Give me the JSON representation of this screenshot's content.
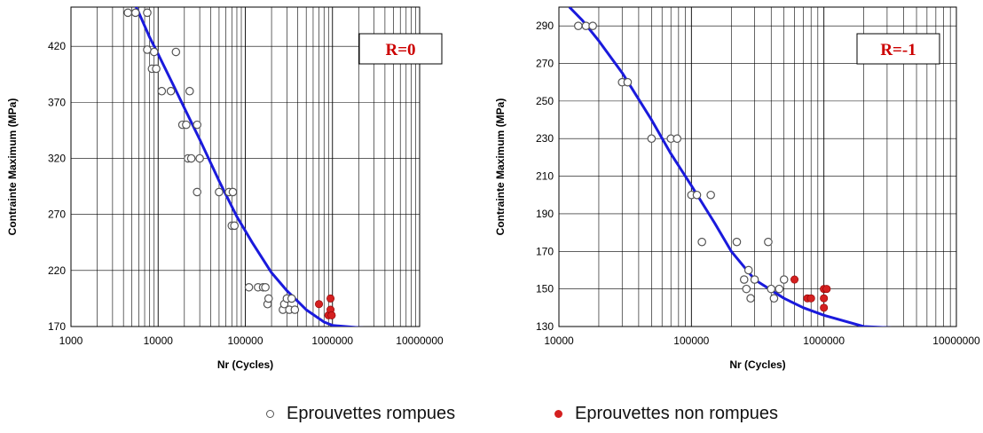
{
  "colors": {
    "curve": "#1a1adc",
    "rompues_fill": "#ffffff",
    "rompues_stroke": "#555555",
    "non_rompues": "#d42020",
    "grid": "#000000",
    "box_text": "#cc0000"
  },
  "legend": {
    "rompues": {
      "label": "Eprouvettes rompues",
      "marker": "open-circle"
    },
    "non_rompues": {
      "label": "Eprouvettes non rompues",
      "marker": "filled-red-circle"
    }
  },
  "chart_data": [
    {
      "type": "scatter",
      "box_label": "R=0",
      "xlabel": "Nr (Cycles)",
      "ylabel": "Contrainte Maximum (MPa)",
      "xscale": "log",
      "xlim": [
        1000,
        10000000
      ],
      "ylim": [
        170,
        455
      ],
      "grid": true,
      "xticks": [
        "1000",
        "10000",
        "100000",
        "1000000",
        "10000000"
      ],
      "yticks": [
        170,
        220,
        270,
        320,
        370,
        420
      ],
      "curve": {
        "x": [
          4500,
          6000,
          8000,
          10000,
          15000,
          20000,
          30000,
          50000,
          80000,
          120000,
          200000,
          300000,
          500000,
          800000,
          1000000,
          2000000,
          5000000,
          8000000
        ],
        "y": [
          470,
          450,
          428,
          413,
          385,
          365,
          337,
          300,
          268,
          245,
          218,
          202,
          185,
          174,
          171,
          169,
          168,
          168
        ]
      },
      "series": [
        {
          "name": "Eprouvettes rompues",
          "points": [
            [
              4500,
              450
            ],
            [
              5500,
              450
            ],
            [
              7500,
              450
            ],
            [
              7500,
              417
            ],
            [
              8500,
              400
            ],
            [
              9000,
              415
            ],
            [
              9500,
              400
            ],
            [
              11000,
              380
            ],
            [
              14000,
              380
            ],
            [
              16000,
              415
            ],
            [
              19000,
              350
            ],
            [
              21000,
              350
            ],
            [
              22000,
              320
            ],
            [
              23000,
              380
            ],
            [
              24000,
              320
            ],
            [
              28000,
              350
            ],
            [
              28000,
              290
            ],
            [
              30000,
              320
            ],
            [
              50000,
              290
            ],
            [
              65000,
              290
            ],
            [
              70000,
              260
            ],
            [
              72000,
              290
            ],
            [
              75000,
              260
            ],
            [
              110000,
              205
            ],
            [
              140000,
              205
            ],
            [
              160000,
              205
            ],
            [
              170000,
              205
            ],
            [
              180000,
              190
            ],
            [
              185000,
              195
            ],
            [
              270000,
              185
            ],
            [
              280000,
              190
            ],
            [
              300000,
              195
            ],
            [
              320000,
              185
            ],
            [
              340000,
              195
            ],
            [
              370000,
              185
            ]
          ]
        },
        {
          "name": "Eprouvettes non rompues",
          "points": [
            [
              700000,
              190
            ],
            [
              900000,
              180
            ],
            [
              950000,
              185
            ],
            [
              950000,
              195
            ],
            [
              980000,
              180
            ]
          ]
        }
      ]
    },
    {
      "type": "scatter",
      "box_label": "R=-1",
      "xlabel": "Nr (Cycles)",
      "ylabel": "Contrainte Maximum (MPa)",
      "xscale": "log",
      "xlim": [
        10000,
        10000000
      ],
      "ylim": [
        130,
        300
      ],
      "grid": true,
      "xticks": [
        "10000",
        "100000",
        "1000000",
        "10000000"
      ],
      "yticks": [
        130,
        150,
        170,
        190,
        210,
        230,
        250,
        270,
        290
      ],
      "curve": {
        "x": [
          12000,
          15000,
          20000,
          30000,
          50000,
          70000,
          100000,
          150000,
          200000,
          300000,
          500000,
          700000,
          1000000,
          2000000,
          4000000,
          10000000
        ],
        "y": [
          300,
          293,
          282,
          265,
          240,
          222,
          205,
          185,
          170,
          155,
          145,
          140,
          136,
          130,
          129,
          129
        ]
      },
      "series": [
        {
          "name": "Eprouvettes rompues",
          "points": [
            [
              14000,
              290
            ],
            [
              16000,
              290
            ],
            [
              18000,
              290
            ],
            [
              30000,
              260
            ],
            [
              33000,
              260
            ],
            [
              50000,
              230
            ],
            [
              70000,
              230
            ],
            [
              78000,
              230
            ],
            [
              100000,
              200
            ],
            [
              110000,
              200
            ],
            [
              120000,
              175
            ],
            [
              140000,
              200
            ],
            [
              220000,
              175
            ],
            [
              250000,
              155
            ],
            [
              260000,
              150
            ],
            [
              270000,
              160
            ],
            [
              280000,
              145
            ],
            [
              300000,
              155
            ],
            [
              380000,
              175
            ],
            [
              400000,
              150
            ],
            [
              420000,
              145
            ],
            [
              460000,
              150
            ],
            [
              500000,
              155
            ]
          ]
        },
        {
          "name": "Eprouvettes non rompues",
          "points": [
            [
              600000,
              155
            ],
            [
              750000,
              145
            ],
            [
              800000,
              145
            ],
            [
              1000000,
              150
            ],
            [
              1000000,
              140
            ],
            [
              1000000,
              145
            ],
            [
              1050000,
              150
            ]
          ]
        }
      ]
    }
  ]
}
